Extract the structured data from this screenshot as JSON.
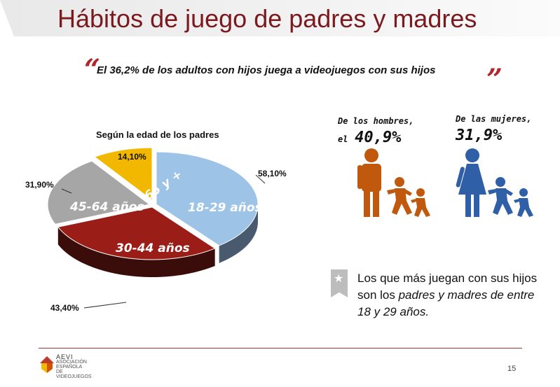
{
  "title": "Hábitos de juego de padres y madres",
  "quote": {
    "open_mark": "“",
    "text": "El 36,2% de los adultos con hijos juega a videojuegos con sus hijos",
    "close_mark": "”"
  },
  "chart_data": {
    "type": "pie",
    "title": "Según la edad de los padres",
    "slices": [
      {
        "label": "18-29 años",
        "value": 58.1,
        "value_label": "58,10%",
        "color": "#9dc3e6"
      },
      {
        "label": "30-44 años",
        "value": 43.4,
        "value_label": "43,40%",
        "color": "#9b1d17"
      },
      {
        "label": "45-64 años",
        "value": 31.9,
        "value_label": "31,90%",
        "color": "#a6a6a6"
      },
      {
        "label": "65 y +",
        "value": 14.1,
        "value_label": "14,10%",
        "color": "#f2b800"
      }
    ]
  },
  "men": {
    "line1": "De los hombres,",
    "line2_prefix": "el",
    "value": "40,9%",
    "color": "#c0590d"
  },
  "women": {
    "line1": "De las mujeres,",
    "value": "31,9%",
    "color": "#2f5fa7"
  },
  "note": {
    "plain": "Los que más juegan con sus hijos son los ",
    "emphasis": "padres y madres de entre 18 y 29 años."
  },
  "footer": {
    "logo_name": "AEVI",
    "logo_sub": "ASOCIACIÓN ESPAÑOLA DE VIDEOJUEGOS",
    "page_number": "15"
  }
}
